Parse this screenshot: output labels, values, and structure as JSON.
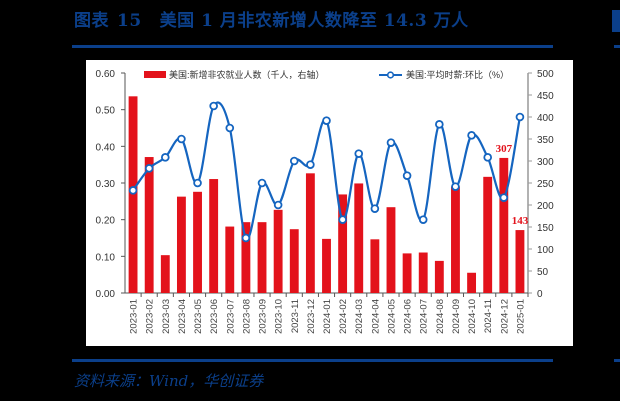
{
  "header": {
    "figure_label": "图表",
    "figure_number": "15",
    "title": "美国 1 月非农新增人数降至 14.3 万人"
  },
  "footer": {
    "source": "资料来源：Wind，华创证券"
  },
  "colors": {
    "brand_blue": "#0b3f8a",
    "bar_red": "#e3121b",
    "line_blue": "#1565c0",
    "label_red": "#e3121b"
  },
  "chart_data": {
    "type": "bar+line",
    "title": "美国 1 月非农新增人数降至 14.3 万人",
    "categories": [
      "2023-01",
      "2023-02",
      "2023-03",
      "2023-04",
      "2023-05",
      "2023-06",
      "2023-07",
      "2023-08",
      "2023-09",
      "2023-10",
      "2023-11",
      "2023-12",
      "2024-01",
      "2024-02",
      "2024-03",
      "2024-04",
      "2024-05",
      "2024-06",
      "2024-07",
      "2024-08",
      "2024-09",
      "2024-10",
      "2024-11",
      "2024-12",
      "2025-01"
    ],
    "series": [
      {
        "name": "美国:新增非农就业人数（千人，右轴）",
        "type": "bar",
        "axis": "right",
        "color": "#e3121b",
        "values": [
          447,
          309,
          86,
          219,
          230,
          259,
          151,
          161,
          161,
          189,
          145,
          272,
          123,
          224,
          249,
          122,
          195,
          90,
          92,
          73,
          242,
          46,
          264,
          307,
          143
        ]
      },
      {
        "name": "美国:平均时薪:环比（%）",
        "type": "line",
        "axis": "left",
        "color": "#1565c0",
        "values": [
          0.28,
          0.34,
          0.37,
          0.42,
          0.3,
          0.51,
          0.45,
          0.15,
          0.3,
          0.24,
          0.36,
          0.35,
          0.47,
          0.2,
          0.38,
          0.23,
          0.41,
          0.32,
          0.2,
          0.46,
          0.29,
          0.43,
          0.37,
          0.26,
          0.48
        ]
      }
    ],
    "annotations": [
      {
        "category": "2024-12",
        "text": "307"
      },
      {
        "category": "2025-01",
        "text": "143"
      }
    ],
    "left_axis": {
      "min": 0,
      "max": 0.6,
      "ticks": [
        "0.00",
        "0.10",
        "0.20",
        "0.30",
        "0.40",
        "0.50",
        "0.60"
      ]
    },
    "right_axis": {
      "min": 0,
      "max": 500,
      "ticks": [
        "0",
        "50",
        "100",
        "150",
        "200",
        "250",
        "300",
        "350",
        "400",
        "450",
        "500"
      ]
    },
    "xlabel": "",
    "ylabel_left": "",
    "ylabel_right": "",
    "grid": false,
    "legend_position": "top-inside"
  }
}
